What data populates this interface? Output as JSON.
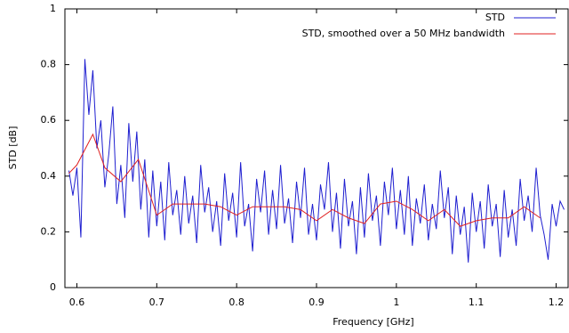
{
  "chart_data": {
    "type": "line",
    "xlabel": "Frequency [GHz]",
    "ylabel": "STD [dB]",
    "xlim": [
      0.585,
      1.215
    ],
    "ylim": [
      0,
      1
    ],
    "xticks": [
      0.6,
      0.7,
      0.8,
      0.9,
      1,
      1.1,
      1.2
    ],
    "yticks": [
      0,
      0.2,
      0.4,
      0.6,
      0.8,
      1
    ],
    "grid": false,
    "legend": "top-right",
    "series": [
      {
        "name": "STD",
        "color": "#1f1fd0",
        "x": [
          0.59,
          0.595,
          0.6,
          0.605,
          0.61,
          0.615,
          0.62,
          0.625,
          0.63,
          0.635,
          0.64,
          0.645,
          0.65,
          0.655,
          0.66,
          0.665,
          0.67,
          0.675,
          0.68,
          0.685,
          0.69,
          0.695,
          0.7,
          0.705,
          0.71,
          0.715,
          0.72,
          0.725,
          0.73,
          0.735,
          0.74,
          0.745,
          0.75,
          0.755,
          0.76,
          0.765,
          0.77,
          0.775,
          0.78,
          0.785,
          0.79,
          0.795,
          0.8,
          0.805,
          0.81,
          0.815,
          0.82,
          0.825,
          0.83,
          0.835,
          0.84,
          0.845,
          0.85,
          0.855,
          0.86,
          0.865,
          0.87,
          0.875,
          0.88,
          0.885,
          0.89,
          0.895,
          0.9,
          0.905,
          0.91,
          0.915,
          0.92,
          0.925,
          0.93,
          0.935,
          0.94,
          0.945,
          0.95,
          0.955,
          0.96,
          0.965,
          0.97,
          0.975,
          0.98,
          0.985,
          0.99,
          0.995,
          1.0,
          1.005,
          1.01,
          1.015,
          1.02,
          1.025,
          1.03,
          1.035,
          1.04,
          1.045,
          1.05,
          1.055,
          1.06,
          1.065,
          1.07,
          1.075,
          1.08,
          1.085,
          1.09,
          1.095,
          1.1,
          1.105,
          1.11,
          1.115,
          1.12,
          1.125,
          1.13,
          1.135,
          1.14,
          1.145,
          1.15,
          1.155,
          1.16,
          1.165,
          1.17,
          1.175,
          1.18,
          1.185,
          1.19,
          1.195,
          1.2,
          1.205,
          1.21
        ],
        "values": [
          0.42,
          0.33,
          0.43,
          0.18,
          0.82,
          0.62,
          0.78,
          0.5,
          0.6,
          0.36,
          0.48,
          0.65,
          0.3,
          0.44,
          0.25,
          0.59,
          0.38,
          0.56,
          0.28,
          0.46,
          0.18,
          0.42,
          0.22,
          0.38,
          0.17,
          0.45,
          0.26,
          0.35,
          0.19,
          0.4,
          0.23,
          0.33,
          0.16,
          0.44,
          0.27,
          0.36,
          0.2,
          0.31,
          0.15,
          0.41,
          0.24,
          0.34,
          0.18,
          0.45,
          0.22,
          0.3,
          0.13,
          0.39,
          0.27,
          0.42,
          0.19,
          0.35,
          0.21,
          0.44,
          0.23,
          0.32,
          0.16,
          0.38,
          0.25,
          0.43,
          0.19,
          0.3,
          0.17,
          0.37,
          0.28,
          0.45,
          0.2,
          0.34,
          0.14,
          0.39,
          0.22,
          0.31,
          0.12,
          0.36,
          0.18,
          0.41,
          0.24,
          0.33,
          0.15,
          0.38,
          0.26,
          0.43,
          0.21,
          0.35,
          0.19,
          0.4,
          0.15,
          0.32,
          0.23,
          0.37,
          0.17,
          0.3,
          0.21,
          0.42,
          0.25,
          0.36,
          0.12,
          0.33,
          0.19,
          0.29,
          0.09,
          0.34,
          0.2,
          0.31,
          0.14,
          0.37,
          0.22,
          0.3,
          0.11,
          0.35,
          0.18,
          0.28,
          0.15,
          0.39,
          0.24,
          0.33,
          0.2,
          0.43,
          0.26,
          0.19,
          0.1,
          0.3,
          0.22,
          0.31,
          0.28
        ]
      },
      {
        "name": "STD, smoothed over a 50 MHz bandwidth",
        "color": "#e02020",
        "x": [
          0.59,
          0.6,
          0.62,
          0.635,
          0.655,
          0.677,
          0.7,
          0.72,
          0.74,
          0.76,
          0.78,
          0.8,
          0.82,
          0.84,
          0.86,
          0.88,
          0.9,
          0.92,
          0.94,
          0.96,
          0.98,
          1.0,
          1.02,
          1.04,
          1.06,
          1.08,
          1.1,
          1.12,
          1.14,
          1.16,
          1.18
        ],
        "values": [
          0.41,
          0.44,
          0.55,
          0.43,
          0.38,
          0.46,
          0.26,
          0.3,
          0.3,
          0.3,
          0.29,
          0.26,
          0.29,
          0.29,
          0.29,
          0.28,
          0.24,
          0.28,
          0.25,
          0.23,
          0.3,
          0.31,
          0.28,
          0.24,
          0.28,
          0.22,
          0.24,
          0.25,
          0.25,
          0.29,
          0.25
        ]
      }
    ]
  }
}
